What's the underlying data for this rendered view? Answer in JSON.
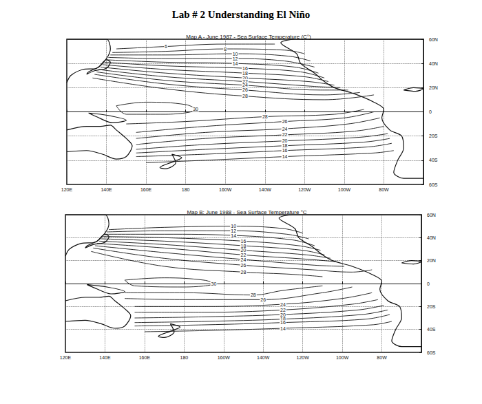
{
  "header": {
    "title": "Lab # 2 Understanding El Niño"
  },
  "chart_data": [
    {
      "type": "contour",
      "title": "Map A - June 1987 - Sea Surface Temperature (C°)",
      "xlim": [
        120,
        300
      ],
      "xticks": [
        {
          "value": 120,
          "label": "120E"
        },
        {
          "value": 140,
          "label": "140E"
        },
        {
          "value": 160,
          "label": "160E"
        },
        180,
        {
          "value": 200,
          "label": "160W"
        },
        {
          "value": 220,
          "label": "140W"
        },
        {
          "value": 240,
          "label": "120W"
        },
        {
          "value": 260,
          "label": "100W"
        },
        {
          "value": 280,
          "label": "80W"
        }
      ],
      "ylim": [
        -60,
        60
      ],
      "yticks": [
        {
          "value": -60,
          "label": "60S"
        },
        {
          "value": -40,
          "label": "40S"
        },
        {
          "value": -20,
          "label": "20S"
        },
        0,
        {
          "value": 20,
          "label": "20N"
        },
        {
          "value": 40,
          "label": "40N"
        },
        {
          "value": 60,
          "label": "60N"
        }
      ],
      "grid": true,
      "color": "#111111",
      "isotherms": [
        {
          "value": 6,
          "points": [
            [
              145,
              52
            ],
            [
              170,
              54
            ],
            [
              200,
              56
            ],
            [
              225,
              56
            ]
          ]
        },
        {
          "value": 8,
          "points": [
            [
              143,
              49
            ],
            [
              170,
              50
            ],
            [
              200,
              52
            ],
            [
              230,
              51
            ],
            [
              240,
              48
            ]
          ]
        },
        {
          "value": 10,
          "points": [
            [
              142,
              47
            ],
            [
              170,
              47
            ],
            [
              205,
              48
            ],
            [
              232,
              46
            ],
            [
              243,
              42
            ]
          ]
        },
        {
          "value": 12,
          "points": [
            [
              141,
              45
            ],
            [
              170,
              44
            ],
            [
              205,
              44
            ],
            [
              230,
              42
            ],
            [
              245,
              37
            ]
          ]
        },
        {
          "value": 14,
          "points": [
            [
              140,
              43
            ],
            [
              170,
              41
            ],
            [
              205,
              40
            ],
            [
              235,
              37
            ],
            [
              247,
              32
            ]
          ]
        },
        {
          "value": 16,
          "points": [
            [
              139,
              41
            ],
            [
              170,
              38
            ],
            [
              210,
              36
            ],
            [
              238,
              33
            ],
            [
              250,
              28
            ]
          ]
        },
        {
          "value": 18,
          "points": [
            [
              138,
              39
            ],
            [
              170,
              35
            ],
            [
              210,
              32
            ],
            [
              240,
              29
            ],
            [
              252,
              25
            ]
          ]
        },
        {
          "value": 20,
          "points": [
            [
              137,
              37
            ],
            [
              170,
              32
            ],
            [
              210,
              28
            ],
            [
              242,
              25
            ],
            [
              255,
              22
            ]
          ]
        },
        {
          "value": 22,
          "points": [
            [
              136,
              35
            ],
            [
              170,
              29
            ],
            [
              210,
              25
            ],
            [
              245,
              21
            ],
            [
              258,
              20
            ]
          ]
        },
        {
          "value": 24,
          "points": [
            [
              135,
              33
            ],
            [
              170,
              26
            ],
            [
              210,
              22
            ],
            [
              248,
              18
            ],
            [
              262,
              18
            ]
          ]
        },
        {
          "value": 26,
          "points": [
            [
              134,
              31
            ],
            [
              170,
              23
            ],
            [
              210,
              18
            ],
            [
              250,
              14
            ],
            [
              268,
              16
            ]
          ]
        },
        {
          "value": 28,
          "points": [
            [
              133,
              28
            ],
            [
              170,
              19
            ],
            [
              210,
              13
            ],
            [
              250,
              10
            ],
            [
              275,
              14
            ]
          ]
        },
        {
          "value": 30,
          "points": [
            [
              145,
              5
            ],
            [
              160,
              8
            ],
            [
              180,
              6
            ],
            [
              185,
              2
            ],
            [
              170,
              -2
            ],
            [
              150,
              -2
            ],
            [
              145,
              5
            ]
          ]
        },
        {
          "value": 28,
          "points": [
            [
              150,
              -10
            ],
            [
              180,
              -8
            ],
            [
              220,
              -4
            ],
            [
              255,
              -2
            ],
            [
              270,
              2
            ]
          ]
        },
        {
          "value": 26,
          "points": [
            [
              155,
              -17
            ],
            [
              190,
              -12
            ],
            [
              230,
              -8
            ],
            [
              260,
              -5
            ],
            [
              275,
              0
            ]
          ]
        },
        {
          "value": 24,
          "points": [
            [
              155,
              -22
            ],
            [
              190,
              -17
            ],
            [
              230,
              -14
            ],
            [
              262,
              -10
            ],
            [
              278,
              -5
            ]
          ]
        },
        {
          "value": 22,
          "points": [
            [
              155,
              -27
            ],
            [
              190,
              -22
            ],
            [
              230,
              -19
            ],
            [
              265,
              -16
            ],
            [
              280,
              -12
            ]
          ]
        },
        {
          "value": 20,
          "points": [
            [
              155,
              -31
            ],
            [
              190,
              -27
            ],
            [
              230,
              -24
            ],
            [
              268,
              -21
            ],
            [
              282,
              -18
            ]
          ]
        },
        {
          "value": 18,
          "points": [
            [
              155,
              -34
            ],
            [
              190,
              -31
            ],
            [
              230,
              -28
            ],
            [
              270,
              -25
            ],
            [
              283,
              -22
            ]
          ]
        },
        {
          "value": 16,
          "points": [
            [
              155,
              -37
            ],
            [
              190,
              -35
            ],
            [
              230,
              -32
            ],
            [
              272,
              -29
            ],
            [
              284,
              -26
            ]
          ]
        },
        {
          "value": 14,
          "points": [
            [
              160,
              -42
            ],
            [
              190,
              -40
            ],
            [
              230,
              -37
            ],
            [
              275,
              -34
            ],
            [
              285,
              -32
            ]
          ]
        }
      ]
    },
    {
      "type": "contour",
      "title": "Map B: June 1988 - Sea Surface Temperature °C",
      "xlim": [
        120,
        300
      ],
      "xticks": [
        {
          "value": 120,
          "label": "120E"
        },
        {
          "value": 140,
          "label": "140E"
        },
        {
          "value": 160,
          "label": "160E"
        },
        180,
        {
          "value": 200,
          "label": "160W"
        },
        {
          "value": 220,
          "label": "140W"
        },
        {
          "value": 240,
          "label": "120W"
        },
        {
          "value": 260,
          "label": "100W"
        },
        {
          "value": 280,
          "label": "80W"
        }
      ],
      "ylim": [
        -60,
        60
      ],
      "yticks": [
        {
          "value": -60,
          "label": "60S"
        },
        {
          "value": -40,
          "label": "40S"
        },
        {
          "value": -20,
          "label": "20S"
        },
        0,
        {
          "value": 20,
          "label": "20N"
        },
        {
          "value": 40,
          "label": "40N"
        },
        {
          "value": 60,
          "label": "60N"
        }
      ],
      "grid": true,
      "color": "#111111",
      "isotherms": [
        {
          "value": 10,
          "points": [
            [
              142,
              47
            ],
            [
              170,
              49
            ],
            [
              205,
              50
            ],
            [
              230,
              48
            ],
            [
              240,
              44
            ]
          ]
        },
        {
          "value": 12,
          "points": [
            [
              141,
              45
            ],
            [
              170,
              46
            ],
            [
              205,
              46
            ],
            [
              232,
              43
            ],
            [
              243,
              39
            ]
          ]
        },
        {
          "value": 14,
          "points": [
            [
              140,
              43
            ],
            [
              170,
              43
            ],
            [
              205,
              42
            ],
            [
              235,
              38
            ],
            [
              246,
              33
            ]
          ]
        },
        {
          "value": 16,
          "points": [
            [
              139,
              41
            ],
            [
              170,
              40
            ],
            [
              210,
              37
            ],
            [
              238,
              33
            ],
            [
              249,
              29
            ]
          ]
        },
        {
          "value": 18,
          "points": [
            [
              138,
              39
            ],
            [
              170,
              37
            ],
            [
              210,
              33
            ],
            [
              240,
              29
            ],
            [
              251,
              25
            ]
          ]
        },
        {
          "value": 20,
          "points": [
            [
              137,
              37
            ],
            [
              170,
              34
            ],
            [
              210,
              29
            ],
            [
              242,
              25
            ],
            [
              254,
              22
            ]
          ]
        },
        {
          "value": 22,
          "points": [
            [
              136,
              35
            ],
            [
              170,
              31
            ],
            [
              210,
              25
            ],
            [
              244,
              21
            ],
            [
              257,
              19
            ]
          ]
        },
        {
          "value": 24,
          "points": [
            [
              135,
              33
            ],
            [
              170,
              27
            ],
            [
              210,
              21
            ],
            [
              246,
              16
            ],
            [
              261,
              15
            ]
          ]
        },
        {
          "value": 26,
          "points": [
            [
              134,
              31
            ],
            [
              170,
              22
            ],
            [
              210,
              16
            ],
            [
              245,
              12
            ],
            [
              265,
              10
            ],
            [
              275,
              12
            ]
          ]
        },
        {
          "value": 28,
          "points": [
            [
              133,
              28
            ],
            [
              170,
              15
            ],
            [
              210,
              10
            ],
            [
              235,
              8
            ],
            [
              250,
              6
            ]
          ]
        },
        {
          "value": 30,
          "points": [
            [
              150,
              3
            ],
            [
              170,
              5
            ],
            [
              190,
              3
            ],
            [
              195,
              0
            ],
            [
              180,
              -3
            ],
            [
              155,
              -2
            ],
            [
              150,
              3
            ]
          ]
        },
        {
          "value": 28,
          "points": [
            [
              150,
              -8
            ],
            [
              180,
              -8
            ],
            [
              215,
              -10
            ],
            [
              230,
              -6
            ],
            [
              250,
              -2
            ]
          ]
        },
        {
          "value": 26,
          "points": [
            [
              150,
              -13
            ],
            [
              180,
              -14
            ],
            [
              220,
              -14
            ],
            [
              250,
              -8
            ],
            [
              265,
              -3
            ]
          ]
        },
        {
          "value": 24,
          "points": [
            [
              155,
              -20
            ],
            [
              190,
              -20
            ],
            [
              230,
              -18
            ],
            [
              260,
              -13
            ],
            [
              275,
              -8
            ]
          ]
        },
        {
          "value": 22,
          "points": [
            [
              155,
              -25
            ],
            [
              190,
              -25
            ],
            [
              230,
              -23
            ],
            [
              265,
              -18
            ],
            [
              278,
              -14
            ]
          ]
        },
        {
          "value": 20,
          "points": [
            [
              155,
              -30
            ],
            [
              190,
              -29
            ],
            [
              230,
              -27
            ],
            [
              268,
              -23
            ],
            [
              281,
              -19
            ]
          ]
        },
        {
          "value": 18,
          "points": [
            [
              155,
              -34
            ],
            [
              190,
              -33
            ],
            [
              230,
              -31
            ],
            [
              270,
              -27
            ],
            [
              283,
              -23
            ]
          ]
        },
        {
          "value": 16,
          "points": [
            [
              155,
              -37
            ],
            [
              190,
              -36
            ],
            [
              230,
              -34
            ],
            [
              272,
              -31
            ],
            [
              284,
              -27
            ]
          ]
        },
        {
          "value": 14,
          "points": [
            [
              160,
              -42
            ],
            [
              190,
              -41
            ],
            [
              230,
              -39
            ],
            [
              275,
              -36
            ],
            [
              285,
              -33
            ]
          ]
        }
      ]
    }
  ]
}
